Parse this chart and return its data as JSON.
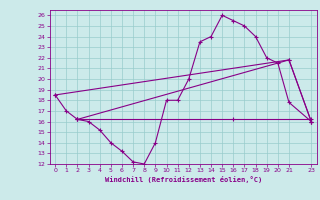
{
  "xlabel": "Windchill (Refroidissement éolien,°C)",
  "bg_color": "#cceaea",
  "line_color": "#880088",
  "grid_color": "#99cccc",
  "xlim": [
    -0.5,
    23.5
  ],
  "ylim": [
    12,
    26.5
  ],
  "xticks": [
    0,
    1,
    2,
    3,
    4,
    5,
    6,
    7,
    8,
    9,
    10,
    11,
    12,
    13,
    14,
    15,
    16,
    17,
    18,
    19,
    20,
    21,
    23
  ],
  "yticks": [
    12,
    13,
    14,
    15,
    16,
    17,
    18,
    19,
    20,
    21,
    22,
    23,
    24,
    25,
    26
  ],
  "series1_x": [
    0,
    1,
    2,
    3,
    4,
    5,
    6,
    7,
    8,
    9,
    10,
    11,
    12,
    13,
    14,
    15,
    16,
    17,
    18,
    19,
    20,
    21,
    23
  ],
  "series1_y": [
    18.5,
    17,
    16.2,
    16,
    15.2,
    14,
    13.2,
    12.2,
    12,
    14,
    18,
    18,
    20,
    23.5,
    24,
    26,
    25.5,
    25,
    24,
    22,
    21.5,
    17.8,
    16
  ],
  "series2_x": [
    0,
    21,
    23
  ],
  "series2_y": [
    18.5,
    21.8,
    16
  ],
  "series3_x": [
    2,
    21,
    23
  ],
  "series3_y": [
    16.2,
    21.8,
    16
  ],
  "series4_x": [
    2,
    16,
    23
  ],
  "series4_y": [
    16.2,
    16.2,
    16.2
  ],
  "marker": "+"
}
